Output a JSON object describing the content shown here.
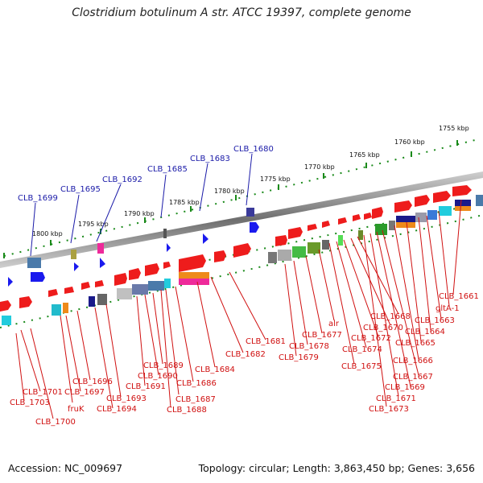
{
  "title": "Clostridium botulinum A str. ATCC 19397, complete genome",
  "footer": {
    "accession": "Accession: NC_009697",
    "summary": "Topology: circular; Length: 3,863,450 bp; Genes: 3,656"
  },
  "kbp_ticks": [
    "1755 kbp",
    "1760 kbp",
    "1765 kbp",
    "1770 kbp",
    "1775 kbp",
    "1780 kbp",
    "1785 kbp",
    "1790 kbp",
    "1795 kbp",
    "1800 kbp"
  ],
  "blue_labels": [
    "CLB_1680",
    "CLB_1683",
    "CLB_1685",
    "CLB_1692",
    "CLB_1695",
    "CLB_1699"
  ],
  "red_labels": [
    "CLB_1661",
    "gltA-1",
    "CLB_1663",
    "CLB_1664",
    "CLB_1665",
    "CLB_1666",
    "CLB_1667",
    "CLB_1669",
    "CLB_1671",
    "CLB_1673",
    "CLB_1668",
    "CLB_1670",
    "CLB_1672",
    "CLB_1674",
    "CLB_1675",
    "alr",
    "CLB_1677",
    "CLB_1678",
    "CLB_1679",
    "CLB_1681",
    "CLB_1682",
    "CLB_1684",
    "CLB_1686",
    "CLB_1687",
    "CLB_1688",
    "CLB_1689",
    "CLB_1690",
    "CLB_1691",
    "CLB_1693",
    "CLB_1694",
    "CLB_1696",
    "CLB_1697",
    "fruK",
    "CLB_1700",
    "CLB_1701",
    "CLB_1703"
  ],
  "colors": {
    "forward_gene": "#ee1c1c",
    "reverse_gene": "#1a1aee",
    "blue_label": "#1a1aa8",
    "red_label": "#d01010",
    "tick_green": "#1a8a1a",
    "backbone": "#888888"
  }
}
